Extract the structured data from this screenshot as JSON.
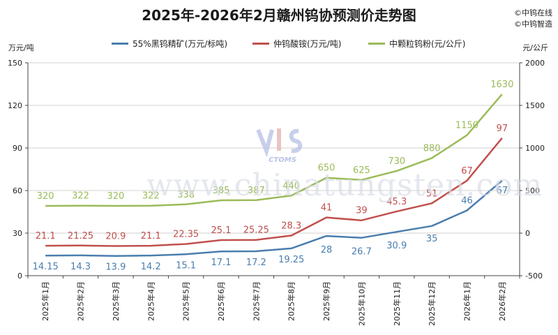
{
  "title": "2025年-2026年2月赣州钨协预测价走势图",
  "credits": [
    "©中钨在线",
    "©中钨智造"
  ],
  "watermark": {
    "text": "www.chinatungsten.com",
    "logo_text": "CTOMS"
  },
  "chart_data": {
    "type": "line",
    "categories": [
      "2025年1月",
      "2025年2月",
      "2025年3月",
      "2025年4月",
      "2025年5月",
      "2025年6月",
      "2025年7月",
      "2025年8月",
      "2025年9月",
      "2025年10月",
      "2025年11月",
      "2025年12月",
      "2026年1月",
      "2026年2月"
    ],
    "y_left": {
      "label": "万元/吨",
      "min": 0,
      "max": 150,
      "ticks": [
        0,
        30,
        60,
        90,
        120,
        150
      ]
    },
    "y_right": {
      "label": "元/公斤",
      "min": -500,
      "max": 2000,
      "ticks": [
        -500,
        0,
        500,
        1000,
        1500,
        2000
      ]
    },
    "grid": true,
    "legend_position": "top",
    "series": [
      {
        "name": "55%黑钨精矿(万元/标吨)",
        "axis": "left",
        "color": "#4a7eae",
        "values": [
          14.15,
          14.3,
          13.9,
          14.2,
          15.1,
          17.1,
          17.2,
          19.25,
          28,
          26.7,
          30.9,
          35,
          46,
          67
        ],
        "labels": [
          "14.15",
          "14.3",
          "13.9",
          "14.2",
          "15.1",
          "17.1",
          "17.2",
          "19.25",
          "28",
          "26.7",
          "30.9",
          "35",
          "46",
          "67"
        ]
      },
      {
        "name": "仲钨酸铵(万元/吨)",
        "axis": "left",
        "color": "#c0504d",
        "values": [
          21.1,
          21.25,
          20.9,
          21.1,
          22.35,
          25.1,
          25.25,
          28.3,
          41,
          39,
          45.3,
          51,
          67,
          97
        ],
        "labels": [
          "21.1",
          "21.25",
          "20.9",
          "21.1",
          "22.35",
          "25.1",
          "25.25",
          "28.3",
          "41",
          "39",
          "45.3",
          "51",
          "67",
          "97"
        ]
      },
      {
        "name": "中颗粒钨粉(元/公斤)",
        "axis": "right",
        "color": "#9bbb59",
        "values": [
          320,
          322,
          320,
          322,
          338,
          385,
          387,
          440,
          650,
          625,
          730,
          880,
          1150,
          1630
        ],
        "labels": [
          "320",
          "322",
          "320",
          "322",
          "338",
          "385",
          "387",
          "440",
          "650",
          "625",
          "730",
          "880",
          "1150",
          "1630"
        ]
      }
    ]
  }
}
